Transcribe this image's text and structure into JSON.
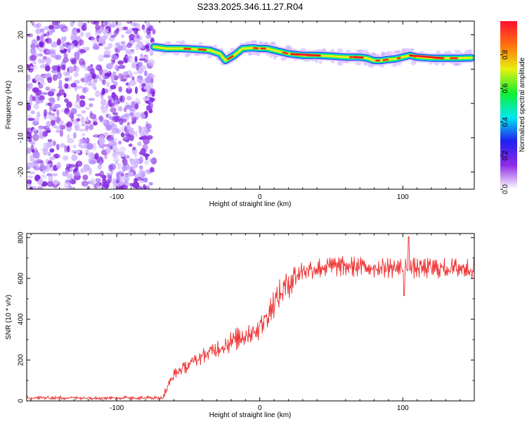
{
  "title": "S233.2025.346.11.27.R04",
  "chart_data": [
    {
      "type": "heatmap",
      "title": "S233.2025.346.11.27.R04",
      "xlabel": "Height of straight line (km)",
      "ylabel": "Frequency (Hz)",
      "xlim": [
        -163,
        150
      ],
      "ylim": [
        -25,
        24
      ],
      "xticks": [
        -100,
        0,
        100
      ],
      "yticks": [
        -20,
        -10,
        0,
        10,
        20
      ],
      "colorbar": {
        "label": "Normalized spectral amplitude",
        "range": [
          0,
          1
        ],
        "ticks": [
          "0.0",
          "0.2",
          "0.4",
          "0.6",
          "0.8"
        ],
        "colors": [
          "#ffffff",
          "#8e2be8",
          "#2020f0",
          "#00e8f0",
          "#10ef30",
          "#e8f010",
          "#ff7010",
          "#ff1030"
        ]
      },
      "noise_region_x": [
        -163,
        -74
      ],
      "ridge": {
        "x": [
          -74,
          -65,
          -55,
          -45,
          -35,
          -28,
          -24,
          -18,
          -12,
          -5,
          0,
          5,
          10,
          15,
          20,
          30,
          40,
          50,
          60,
          70,
          75,
          80,
          85,
          90,
          95,
          100,
          105,
          110,
          120,
          130,
          140,
          148
        ],
        "freq": [
          16.5,
          16.0,
          16.0,
          15.8,
          15.5,
          14.5,
          12.5,
          14.0,
          16.0,
          16.2,
          16.0,
          16.0,
          15.5,
          15.0,
          14.5,
          14.0,
          14.0,
          13.8,
          13.5,
          13.5,
          13.2,
          12.5,
          12.5,
          12.8,
          13.0,
          13.5,
          14.0,
          13.5,
          13.2,
          13.2,
          13.2,
          13.3
        ]
      }
    },
    {
      "type": "line",
      "title": "",
      "xlabel": "Height of straight line (km)",
      "ylabel": "SNR (10 * v/v)",
      "xlim": [
        -163,
        150
      ],
      "ylim": [
        0,
        820
      ],
      "xticks": [
        -100,
        0,
        100
      ],
      "yticks": [
        0,
        200,
        400,
        600,
        800
      ],
      "color": "#ee3030",
      "trend": {
        "x": [
          -163,
          -100,
          -68,
          -65,
          -60,
          -40,
          -20,
          0,
          10,
          20,
          30,
          50,
          100,
          150
        ],
        "y": [
          15,
          15,
          15,
          60,
          130,
          220,
          290,
          360,
          480,
          580,
          640,
          660,
          650,
          650
        ]
      },
      "features": [
        {
          "x": 104,
          "y": 805
        },
        {
          "x": 101,
          "y": 515
        }
      ]
    }
  ]
}
